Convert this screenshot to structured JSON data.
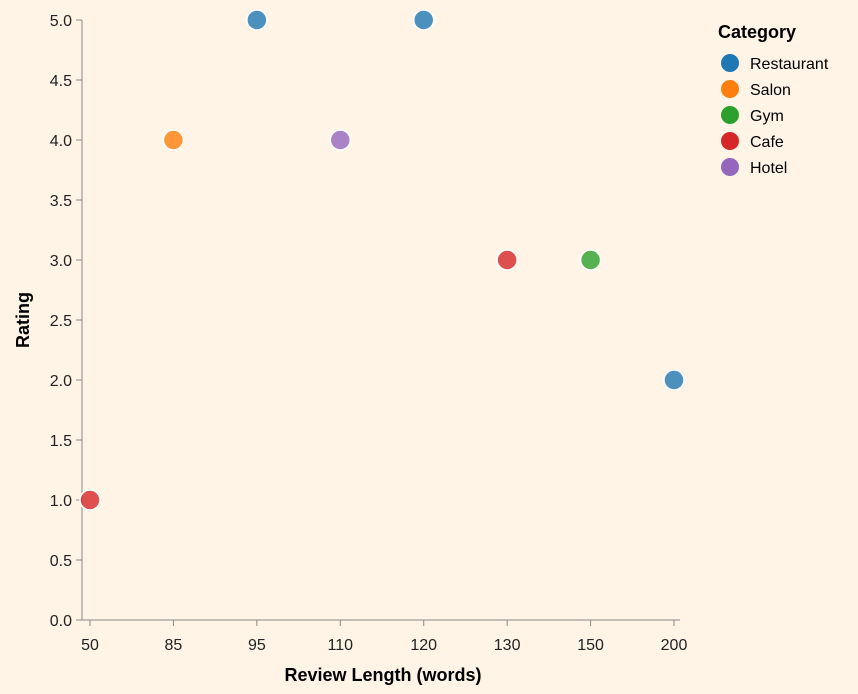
{
  "chart_data": {
    "type": "scatter",
    "xlabel": "Review Length (words)",
    "ylabel": "Rating",
    "x_ticks": [
      "50",
      "85",
      "95",
      "110",
      "120",
      "130",
      "150",
      "200"
    ],
    "y_ticks": [
      "0.0",
      "0.5",
      "1.0",
      "1.5",
      "2.0",
      "2.5",
      "3.0",
      "3.5",
      "4.0",
      "4.5",
      "5.0"
    ],
    "ylim": [
      0,
      5
    ],
    "x_scale": "ordinal",
    "grid": false,
    "legend": {
      "title": "Category",
      "placement": "top-right",
      "entries": [
        {
          "name": "Restaurant",
          "color": "#1f77b4"
        },
        {
          "name": "Salon",
          "color": "#ff7f0e"
        },
        {
          "name": "Gym",
          "color": "#2ca02c"
        },
        {
          "name": "Cafe",
          "color": "#d62728"
        },
        {
          "name": "Hotel",
          "color": "#9467bd"
        }
      ]
    },
    "points": [
      {
        "x": 95,
        "y": 5.0,
        "category": "Restaurant"
      },
      {
        "x": 120,
        "y": 5.0,
        "category": "Restaurant"
      },
      {
        "x": 85,
        "y": 4.0,
        "category": "Salon"
      },
      {
        "x": 110,
        "y": 4.0,
        "category": "Hotel"
      },
      {
        "x": 130,
        "y": 3.0,
        "category": "Cafe"
      },
      {
        "x": 150,
        "y": 3.0,
        "category": "Gym"
      },
      {
        "x": 200,
        "y": 2.0,
        "category": "Restaurant"
      },
      {
        "x": 50,
        "y": 1.0,
        "category": "Cafe"
      }
    ]
  }
}
